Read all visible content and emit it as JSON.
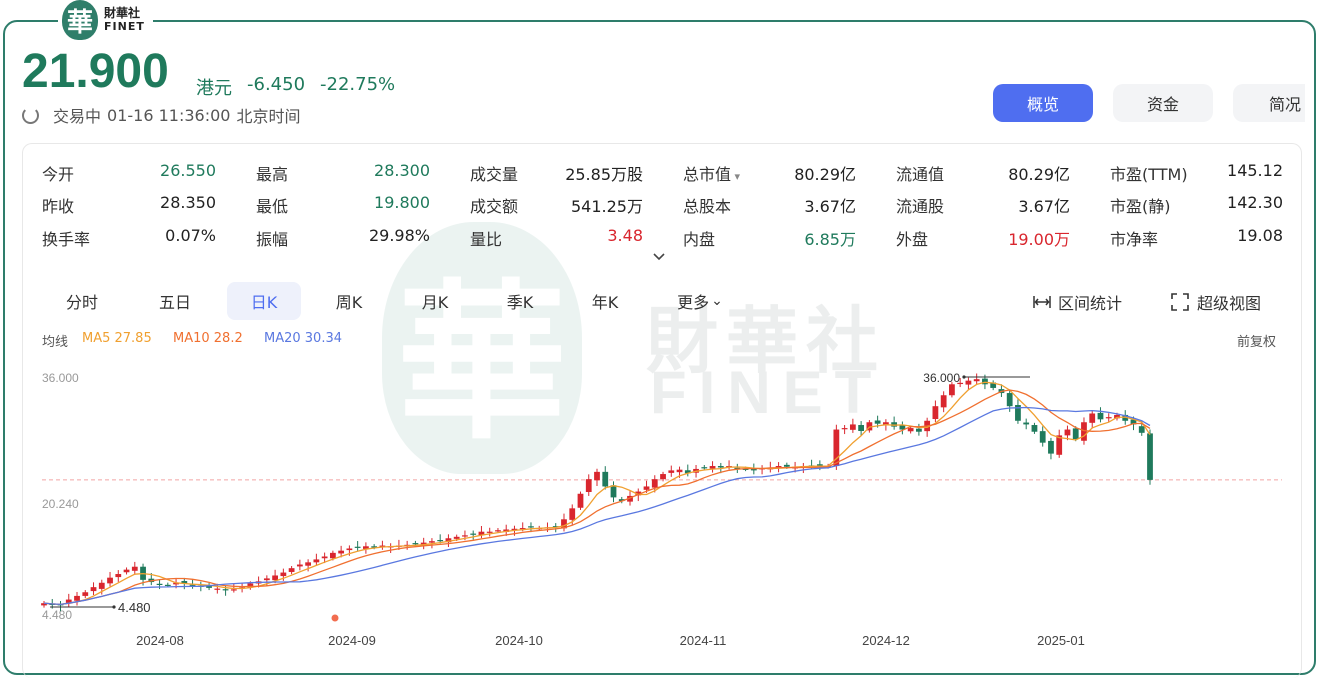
{
  "brand": {
    "cn": "財華社",
    "en": "FINET",
    "seal": "華"
  },
  "quote": {
    "price": "21.900",
    "unit": "港元",
    "change": "-6.450",
    "change_pct": "-22.75%",
    "status": "交易中",
    "datetime": "01-16 11:36:00",
    "timezone": "北京时间"
  },
  "tabs": [
    "概览",
    "资金",
    "简况"
  ],
  "stats": [
    [
      {
        "label": "今开",
        "value": "26.550",
        "color": "g"
      },
      {
        "label": "最高",
        "value": "28.300",
        "color": "g"
      },
      {
        "label": "成交量",
        "value": "25.85万股",
        "color": "k"
      },
      {
        "label": "总市值",
        "value": "80.29亿",
        "color": "k"
      },
      {
        "label": "流通值",
        "value": "80.29亿",
        "color": "k"
      },
      {
        "label": "市盈(TTM)",
        "value": "145.12",
        "color": "k"
      }
    ],
    [
      {
        "label": "昨收",
        "value": "28.350",
        "color": "k"
      },
      {
        "label": "最低",
        "value": "19.800",
        "color": "g"
      },
      {
        "label": "成交额",
        "value": "541.25万",
        "color": "k"
      },
      {
        "label": "总股本",
        "value": "3.67亿",
        "color": "k"
      },
      {
        "label": "流通股",
        "value": "3.67亿",
        "color": "k"
      },
      {
        "label": "市盈(静)",
        "value": "142.30",
        "color": "k"
      }
    ],
    [
      {
        "label": "换手率",
        "value": "0.07%",
        "color": "k"
      },
      {
        "label": "振幅",
        "value": "29.98%",
        "color": "k"
      },
      {
        "label": "量比",
        "value": "3.48",
        "color": "r"
      },
      {
        "label": "内盘",
        "value": "6.85万",
        "color": "g"
      },
      {
        "label": "外盘",
        "value": "19.00万",
        "color": "r"
      },
      {
        "label": "市净率",
        "value": "19.08",
        "color": "k"
      }
    ]
  ],
  "periods": [
    "分时",
    "五日",
    "日K",
    "周K",
    "月K",
    "季K",
    "年K",
    "更多"
  ],
  "active_period": "日K",
  "tools": {
    "range_stats": "区间统计",
    "super_view": "超级视图"
  },
  "ma_legend": {
    "label": "均线",
    "ma5": "MA5 27.85",
    "ma10": "MA10 28.2",
    "ma20": "MA20 30.34"
  },
  "adjust": "前复权",
  "colors": {
    "up": "#d9262e",
    "down": "#1f7a5c",
    "ma5": "#f0a030",
    "ma10": "#f07030",
    "ma20": "#5a78e0",
    "accent": "#4f6ef0"
  },
  "chart_data": {
    "type": "candlestick",
    "y_ticks": [
      "36.000",
      "20.240",
      "4.480"
    ],
    "ylim": [
      4.48,
      36.0
    ],
    "x_ticks": [
      "2024-08",
      "2024-09",
      "2024-10",
      "2024-11",
      "2024-12",
      "2025-01"
    ],
    "annotations": {
      "high": "36.000",
      "low": "4.480"
    },
    "close_approx": [
      5.0,
      4.8,
      4.7,
      5.5,
      6.0,
      6.5,
      7.2,
      7.8,
      8.5,
      9.0,
      9.6,
      10.0,
      8.2,
      7.9,
      7.6,
      7.5,
      7.8,
      7.7,
      7.4,
      7.3,
      7.1,
      7.0,
      6.8,
      6.9,
      7.3,
      7.7,
      8.0,
      8.4,
      8.8,
      9.2,
      9.8,
      10.3,
      10.6,
      11.0,
      11.4,
      11.9,
      12.2,
      12.5,
      12.6,
      12.8,
      12.7,
      12.9,
      12.8,
      12.9,
      13.0,
      13.1,
      13.3,
      13.5,
      13.6,
      13.9,
      14.1,
      14.3,
      14.5,
      14.8,
      14.8,
      15.0,
      15.1,
      15.2,
      15.3,
      15.4,
      15.3,
      15.4,
      15.5,
      16.5,
      18.0,
      20.0,
      22.0,
      23.0,
      21.0,
      19.5,
      19.0,
      19.7,
      20.3,
      21.0,
      22.0,
      22.7,
      23.2,
      23.3,
      22.8,
      23.4,
      23.6,
      23.8,
      23.6,
      23.8,
      23.5,
      23.4,
      23.2,
      23.5,
      23.6,
      23.8,
      23.7,
      23.7,
      23.8,
      23.8,
      23.9,
      23.8,
      28.8,
      29.0,
      29.5,
      28.6,
      29.8,
      29.6,
      29.8,
      29.2,
      28.8,
      29.0,
      28.5,
      30.0,
      32.0,
      33.5,
      35.0,
      35.2,
      35.5,
      35.7,
      35.0,
      34.5,
      33.8,
      32.0,
      30.0,
      29.5,
      28.5,
      27.0,
      25.5,
      28.0,
      28.8,
      27.5,
      29.8,
      31.0,
      30.2,
      30.5,
      30.8,
      30.0,
      29.5,
      28.35,
      21.9
    ]
  }
}
